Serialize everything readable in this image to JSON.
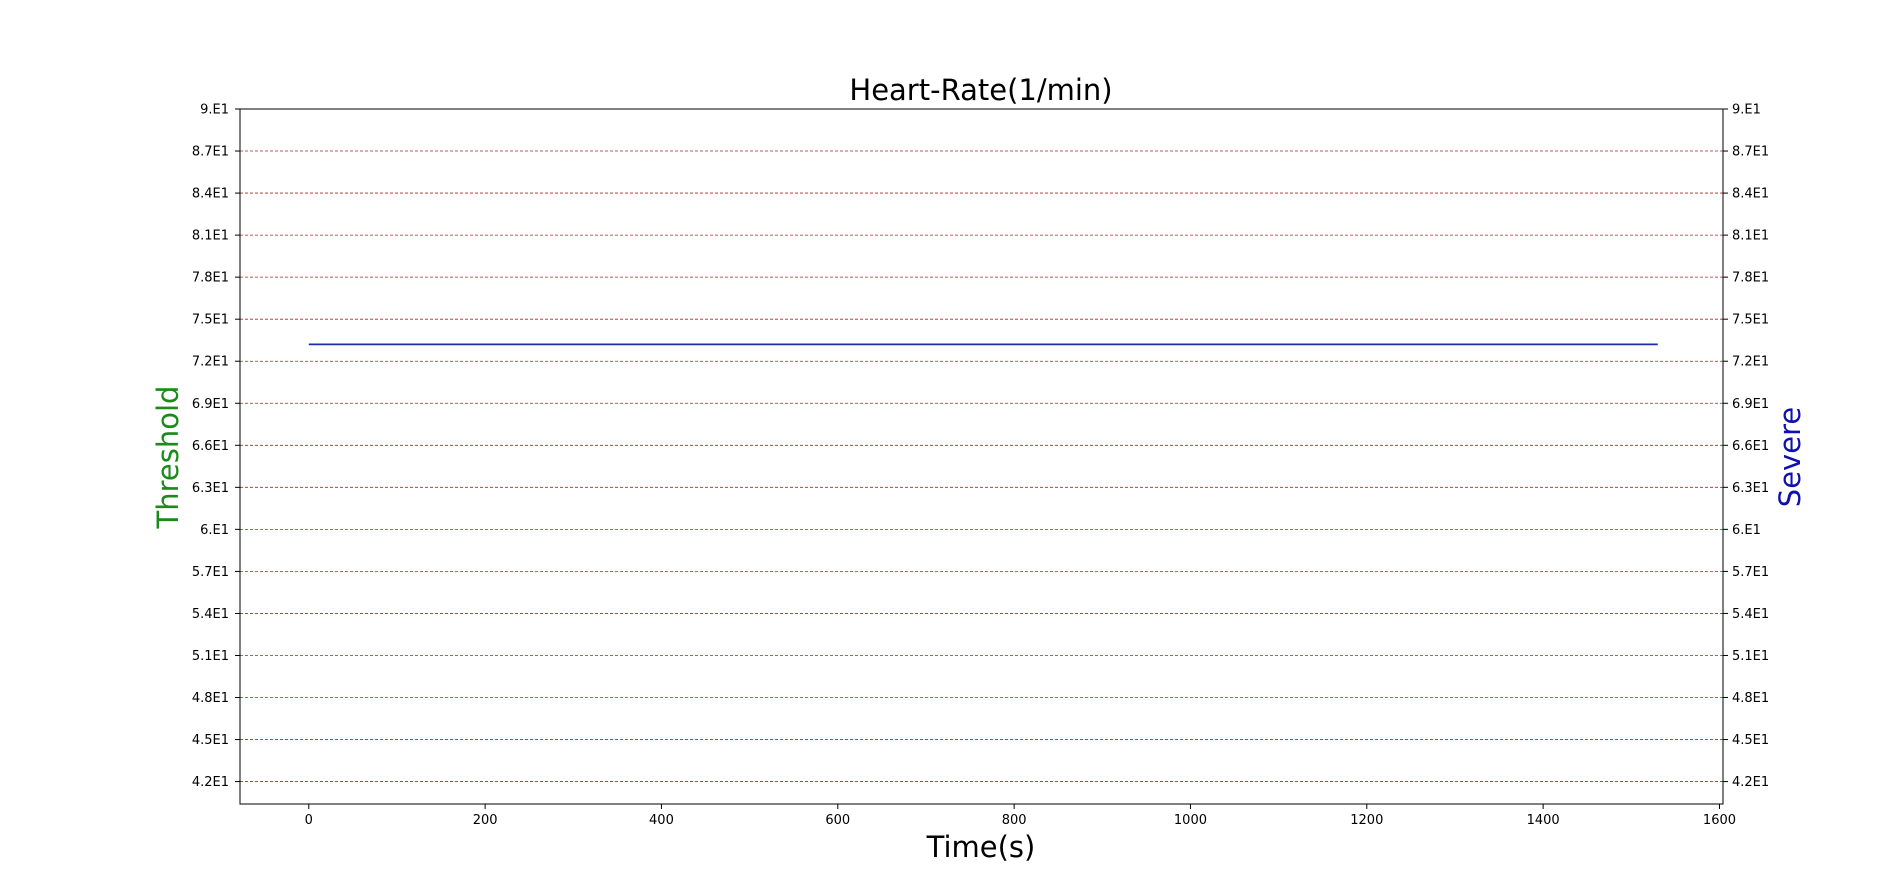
{
  "chart_data": {
    "type": "line",
    "title": "Heart-Rate(1/min)",
    "xlabel": "Time(s)",
    "ylabel_left": "Threshold",
    "ylabel_right": "Severe",
    "xlim": [
      -78,
      1604
    ],
    "ylim": [
      40.4,
      90
    ],
    "x_ticks": [
      0,
      200,
      400,
      600,
      800,
      1000,
      1200,
      1400,
      1600
    ],
    "y_ticks": [
      {
        "value": 42,
        "label": "4.2E1"
      },
      {
        "value": 45,
        "label": "4.5E1"
      },
      {
        "value": 48,
        "label": "4.8E1"
      },
      {
        "value": 51,
        "label": "5.1E1"
      },
      {
        "value": 54,
        "label": "5.4E1"
      },
      {
        "value": 57,
        "label": "5.7E1"
      },
      {
        "value": 60,
        "label": "6.E1"
      },
      {
        "value": 63,
        "label": "6.3E1"
      },
      {
        "value": 66,
        "label": "6.6E1"
      },
      {
        "value": 69,
        "label": "6.9E1"
      },
      {
        "value": 72,
        "label": "7.2E1"
      },
      {
        "value": 75,
        "label": "7.5E1"
      },
      {
        "value": 78,
        "label": "7.8E1"
      },
      {
        "value": 81,
        "label": "8.1E1"
      },
      {
        "value": 84,
        "label": "8.4E1"
      },
      {
        "value": 87,
        "label": "8.7E1"
      },
      {
        "value": 90,
        "label": "9.E1"
      }
    ],
    "grid": {
      "horizontal": true,
      "vertical": false,
      "color": "#b22222",
      "style": "dashed"
    },
    "series": [
      {
        "color": "#1a2ea8",
        "x": [
          0,
          1530
        ],
        "y": [
          73.2,
          73.2
        ]
      }
    ],
    "colors": {
      "ylabel_left": "#1a8a1a",
      "ylabel_right": "#1010b0",
      "axis": "#000000"
    }
  }
}
